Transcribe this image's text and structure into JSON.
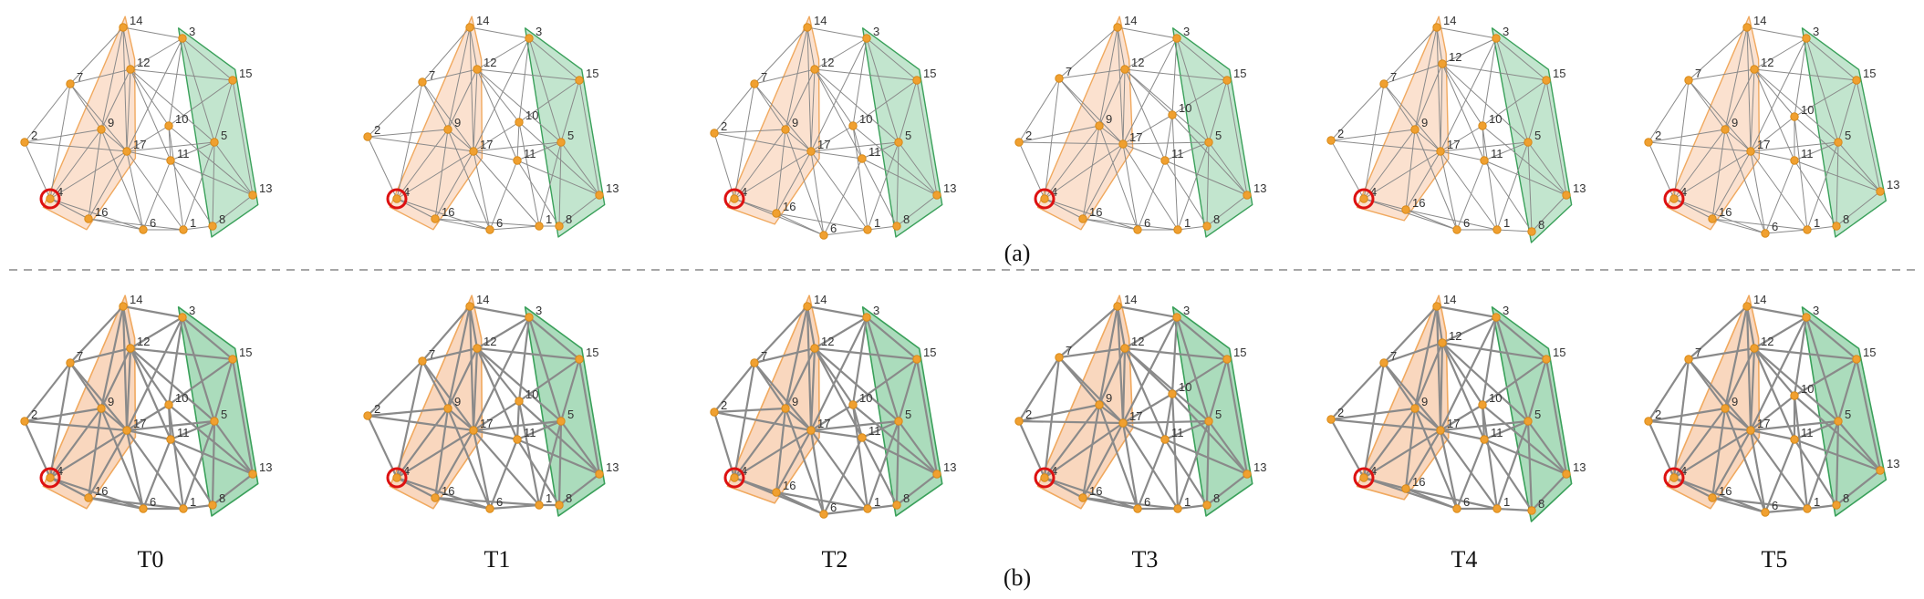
{
  "figure": {
    "divider": true,
    "rows": [
      {
        "caption": "(a)",
        "style": "thin",
        "panels": [
          {
            "time_label": "",
            "highlight_node": "4"
          },
          {
            "time_label": "",
            "highlight_node": "4"
          },
          {
            "time_label": "",
            "highlight_node": "4"
          },
          {
            "time_label": "",
            "highlight_node": "4"
          },
          {
            "time_label": "",
            "highlight_node": "4"
          },
          {
            "time_label": "",
            "highlight_node": "4"
          }
        ]
      },
      {
        "caption": "(b)",
        "style": "thick",
        "panels": [
          {
            "time_label": "T0",
            "highlight_node": "4"
          },
          {
            "time_label": "T1",
            "highlight_node": "4"
          },
          {
            "time_label": "T2",
            "highlight_node": "4"
          },
          {
            "time_label": "T3",
            "highlight_node": "4"
          },
          {
            "time_label": "T4",
            "highlight_node": "4"
          },
          {
            "time_label": "T5",
            "highlight_node": "4"
          }
        ]
      }
    ],
    "nodes": [
      "1",
      "2",
      "3",
      "4",
      "5",
      "6",
      "7",
      "8",
      "9",
      "10",
      "11",
      "12",
      "13",
      "14",
      "15",
      "16",
      "17"
    ],
    "groups": [
      {
        "name": "orange",
        "fill": "#f7c9a8",
        "stroke": "#f0a95f",
        "members": [
          "14",
          "12",
          "9",
          "17",
          "4",
          "16"
        ]
      },
      {
        "name": "green",
        "fill": "#8fd0a6",
        "stroke": "#3aa05a",
        "members": [
          "3",
          "15",
          "5",
          "13",
          "8"
        ]
      }
    ],
    "colors": {
      "node": "#f0a030",
      "edge": "#8a8a8a",
      "highlight": "#dd1111"
    }
  }
}
